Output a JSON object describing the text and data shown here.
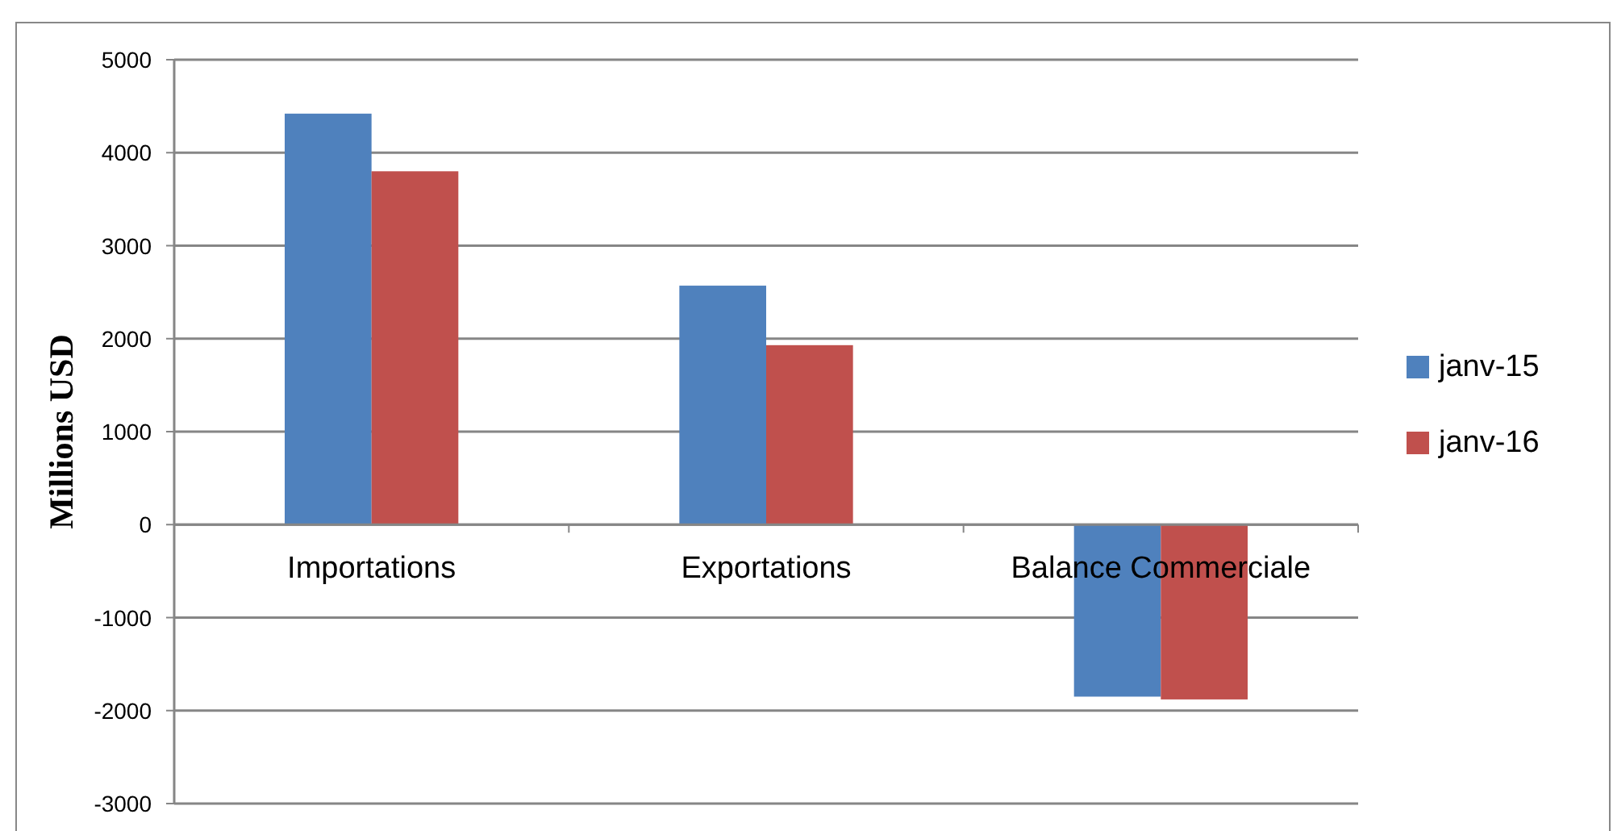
{
  "chart_data": {
    "type": "bar",
    "ylabel": "Millions USD",
    "categories": [
      "Importations",
      "Exportations",
      "Balance Commerciale"
    ],
    "series": [
      {
        "name": "janv-15",
        "color": "#4f81bd",
        "values": [
          4420,
          2570,
          -1850
        ]
      },
      {
        "name": "janv-16",
        "color": "#c0504d",
        "values": [
          3800,
          1930,
          -1880
        ]
      }
    ],
    "ylim": [
      -3000,
      5000
    ],
    "yticks": [
      -3000,
      -2000,
      -1000,
      0,
      1000,
      2000,
      3000,
      4000,
      5000
    ],
    "grid": "y",
    "legend": "right"
  }
}
